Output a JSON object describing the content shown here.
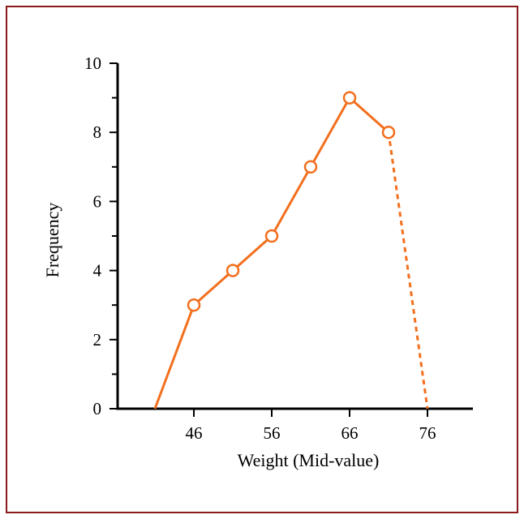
{
  "chart_data": {
    "type": "line",
    "title": "",
    "xlabel": "Weight (Mid-value)",
    "ylabel": "Frequency",
    "xlim": [
      38,
      82
    ],
    "ylim": [
      0,
      10
    ],
    "x_ticks": [
      46,
      56,
      66,
      76
    ],
    "y_ticks": [
      0,
      2,
      4,
      6,
      8,
      10
    ],
    "x_tick_labels": [
      "46",
      "56",
      "66",
      "76"
    ],
    "y_tick_labels": [
      "0",
      "2",
      "4",
      "6",
      "8",
      "10"
    ],
    "y_minor_ticks": [
      1,
      3,
      5,
      7,
      9
    ],
    "grid": false,
    "series": [
      {
        "x": [
          41,
          46,
          51,
          56,
          61,
          66,
          71
        ],
        "y": [
          0,
          3,
          4,
          5,
          7,
          9,
          8
        ],
        "marker": "circle",
        "color": "#f26f1d"
      }
    ],
    "dashed_segment": {
      "x": [
        71,
        76
      ],
      "y": [
        8,
        0
      ],
      "color": "#f26f1d"
    }
  }
}
